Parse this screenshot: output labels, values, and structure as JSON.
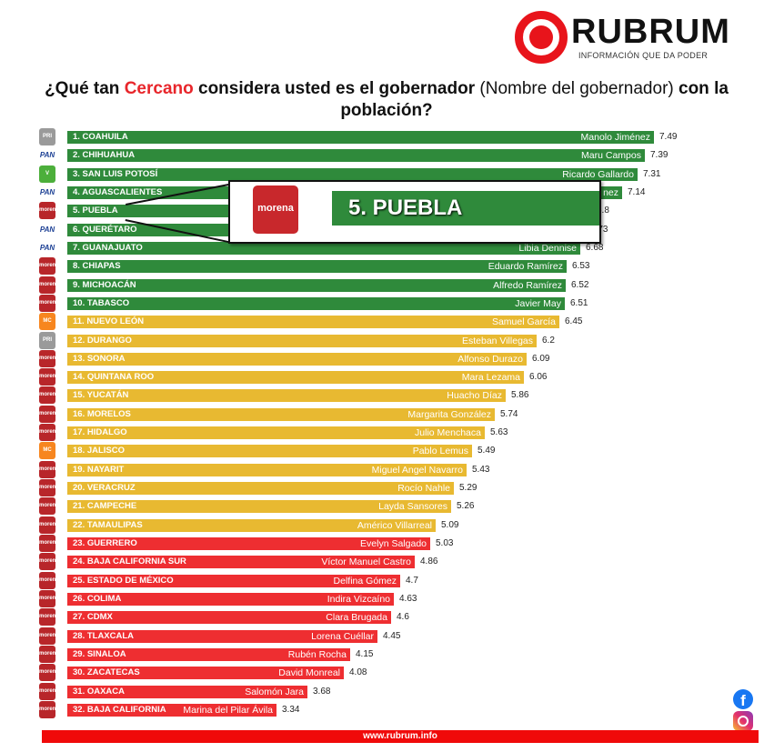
{
  "brand": {
    "name": "RUBRUM",
    "tagline": "INFORMACIÓN QUE DA PODER",
    "url": "www.rubrum.info"
  },
  "title": {
    "part1": "¿Qué tan ",
    "highlight": "Cercano",
    "part2": " considera usted es el gobernador ",
    "part3": "(Nombre del gobernador)",
    "part4": " con la población?"
  },
  "colors": {
    "high": "#2f8a3b",
    "mid": "#e8b931",
    "low": "#ee2e31",
    "accent": "#e8262b"
  },
  "party_colors": {
    "PRI": "#9a9a9a",
    "PAN": "#ffffff",
    "VERDE": "#4caf3b",
    "MORENA": "#b8262a",
    "MC": "#f7861f"
  },
  "callout": {
    "label": "5. PUEBLA",
    "party": "morena"
  },
  "chart_data": {
    "type": "bar",
    "orientation": "horizontal",
    "title": "¿Qué tan Cercano considera usted es el gobernador (Nombre del gobernador) con la población?",
    "categories": [
      "1. COAHUILA",
      "2. CHIHUAHUA",
      "3. SAN LUIS POTOSÍ",
      "4. AGUASCALIENTES",
      "5. PUEBLA",
      "6. QUERÉTARO",
      "7. GUANAJUATO",
      "8. CHIAPAS",
      "9. MICHOACÁN",
      "10. TABASCO",
      "11. NUEVO LEÓN",
      "12. DURANGO",
      "13. SONORA",
      "14. QUINTANA ROO",
      "15. YUCATÁN",
      "16. MORELOS",
      "17. HIDALGO",
      "18. JALISCO",
      "19. NAYARIT",
      "20. VERACRUZ",
      "21. CAMPECHE",
      "22. TAMAULIPAS",
      "23. GUERRERO",
      "24. BAJA CALIFORNIA SUR",
      "25. ESTADO DE MÉXICO",
      "26. COLIMA",
      "27. CDMX",
      "28. TLAXCALA",
      "29. SINALOA",
      "30. ZACATECAS",
      "31. OAXACA",
      "32. BAJA CALIFORNIA"
    ],
    "governors": [
      "Manolo Jiménez",
      "Maru Campos",
      "Ricardo Gallardo",
      "nez",
      "",
      "",
      "Libia Dennise",
      "Eduardo Ramírez",
      "Alfredo Ramírez",
      "Javier May",
      "Samuel García",
      "Esteban Villegas",
      "Alfonso Durazo",
      "Mara Lezama",
      "Huacho Díaz",
      "Margarita González",
      "Julio Menchaca",
      "Pablo Lemus",
      "Miguel Angel Navarro",
      "Rocío Nahle",
      "Layda Sansores",
      "Américo Villarreal",
      "Evelyn Salgado",
      "Víctor Manuel Castro",
      "Delfina Gómez",
      "Indira Vizcaíno",
      "Clara Brugada",
      "Lorena Cuéllar",
      "Rubén Rocha",
      "David Monreal",
      "Salomón Jara",
      "Marina del Pilar Ávila"
    ],
    "parties": [
      "PRI",
      "PAN",
      "VERDE",
      "PAN",
      "MORENA",
      "PAN",
      "PAN",
      "MORENA",
      "MORENA",
      "MORENA",
      "MC",
      "PRI",
      "MORENA",
      "MORENA",
      "MORENA",
      "MORENA",
      "MORENA",
      "MC",
      "MORENA",
      "MORENA",
      "MORENA",
      "MORENA",
      "MORENA",
      "MORENA",
      "MORENA",
      "MORENA",
      "MORENA",
      "MORENA",
      "MORENA",
      "MORENA",
      "MORENA",
      "MORENA"
    ],
    "values": [
      7.49,
      7.39,
      7.31,
      7.14,
      6.8,
      6.73,
      6.68,
      6.53,
      6.52,
      6.51,
      6.45,
      6.2,
      6.09,
      6.06,
      5.86,
      5.74,
      5.63,
      5.49,
      5.43,
      5.29,
      5.26,
      5.09,
      5.03,
      4.86,
      4.7,
      4.63,
      4.6,
      4.45,
      4.15,
      4.08,
      3.68,
      3.34
    ],
    "value_labels": [
      "7.49",
      "7.39",
      "7.31",
      "7.14",
      "6.8",
      "6.73",
      "6.68",
      "6.53",
      "6.52",
      "6.51",
      "6.45",
      "6.2",
      "6.09",
      "6.06",
      "5.86",
      "5.74",
      "5.63",
      "5.49",
      "5.43",
      "5.29",
      "5.26",
      "5.09",
      "5.03",
      "4.86",
      "4.7",
      "4.63",
      "4.6",
      "4.45",
      "4.15",
      "4.08",
      "3.68",
      "3.34"
    ],
    "color_groups": [
      "high",
      "high",
      "high",
      "high",
      "high",
      "high",
      "high",
      "high",
      "high",
      "high",
      "mid",
      "mid",
      "mid",
      "mid",
      "mid",
      "mid",
      "mid",
      "mid",
      "mid",
      "mid",
      "mid",
      "mid",
      "low",
      "low",
      "low",
      "low",
      "low",
      "low",
      "low",
      "low",
      "low",
      "low"
    ],
    "grid": false,
    "legend": "none"
  }
}
